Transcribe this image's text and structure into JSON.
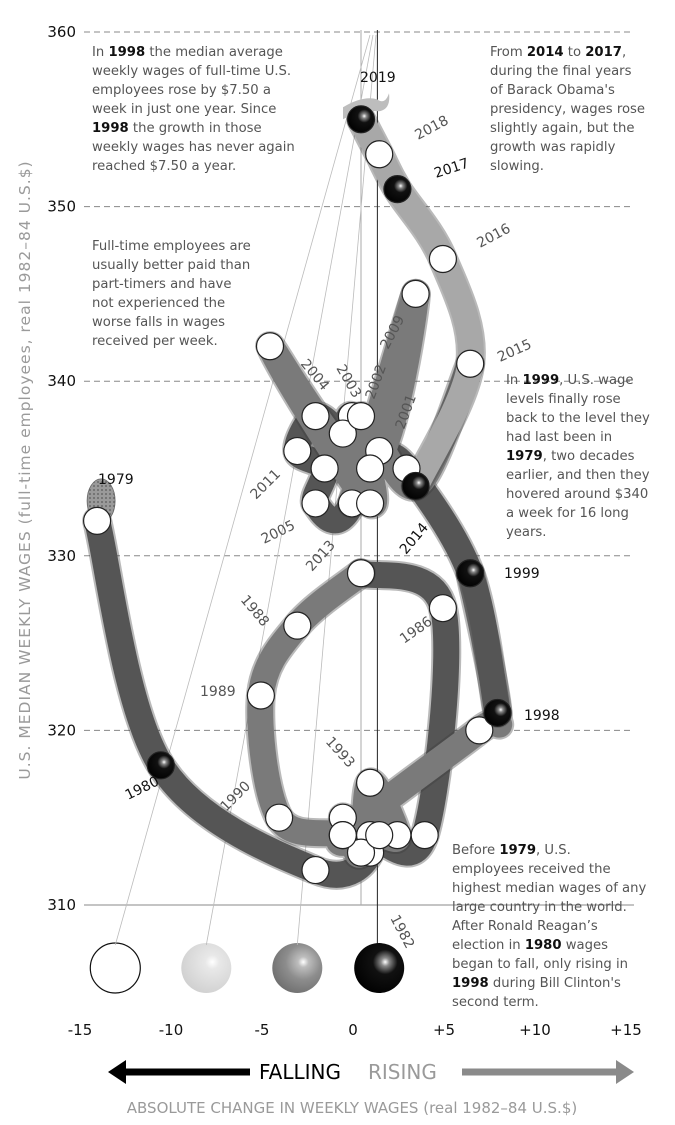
{
  "chart_data": {
    "type": "line",
    "subtype": "connected-scatter",
    "title": "",
    "ylabel": "U.S. MEDIAN WEEKLY WAGES (full-time employees, real 1982–84 U.S.$)",
    "xlabel": "ABSOLUTE CHANGE IN WEEKLY WAGES (real 1982–84 U.S.$)",
    "xlim": [
      -15,
      15
    ],
    "ylim": [
      310,
      360
    ],
    "x_ticks": [
      "-15",
      "-10",
      "-5",
      "0",
      "+5",
      "+10",
      "+15"
    ],
    "y_ticks": [
      "360",
      "350",
      "340",
      "330",
      "320",
      "310"
    ],
    "grid": true,
    "arrow_left_label": "FALLING",
    "arrow_right_label": "RISING",
    "legend_balls": [
      "white",
      "light-grey",
      "dark-grey",
      "black"
    ],
    "points": [
      {
        "year": "1979",
        "x": -14.5,
        "y": 332
      },
      {
        "year": "1980",
        "x": -11.0,
        "y": 318
      },
      {
        "year": "1981",
        "x": -2.5,
        "y": 312
      },
      {
        "year": "1982",
        "x": 0.5,
        "y": 313
      },
      {
        "year": "1983",
        "x": -1.0,
        "y": 315
      },
      {
        "year": "1984",
        "x": 0.5,
        "y": 314
      },
      {
        "year": "1985",
        "x": 3.5,
        "y": 314
      },
      {
        "year": "1986",
        "x": 4.5,
        "y": 327
      },
      {
        "year": "1987",
        "x": 0.0,
        "y": 329
      },
      {
        "year": "1988",
        "x": -3.5,
        "y": 326
      },
      {
        "year": "1989",
        "x": -5.5,
        "y": 322
      },
      {
        "year": "1990",
        "x": -4.5,
        "y": 315
      },
      {
        "year": "1991",
        "x": -1.0,
        "y": 314
      },
      {
        "year": "1992",
        "x": 0.0,
        "y": 313
      },
      {
        "year": "1993",
        "x": 0.5,
        "y": 317
      },
      {
        "year": "1994",
        "x": 2.0,
        "y": 314
      },
      {
        "year": "1995",
        "x": 1.0,
        "y": 314
      },
      {
        "year": "1996",
        "x": -1.0,
        "y": 314
      },
      {
        "year": "1997",
        "x": 6.5,
        "y": 320
      },
      {
        "year": "1998",
        "x": 7.5,
        "y": 321
      },
      {
        "year": "1999",
        "x": 6.0,
        "y": 329
      },
      {
        "year": "2000",
        "x": 2.5,
        "y": 335
      },
      {
        "year": "2001",
        "x": 1.0,
        "y": 336
      },
      {
        "year": "2002",
        "x": -0.5,
        "y": 338
      },
      {
        "year": "2003",
        "x": -1.0,
        "y": 337
      },
      {
        "year": "2004",
        "x": -2.5,
        "y": 338
      },
      {
        "year": "2005",
        "x": -3.5,
        "y": 336
      },
      {
        "year": "2006",
        "x": -2.0,
        "y": 335
      },
      {
        "year": "2007",
        "x": -2.5,
        "y": 333
      },
      {
        "year": "2008",
        "x": -0.5,
        "y": 333
      },
      {
        "year": "2009",
        "x": 3.0,
        "y": 345
      },
      {
        "year": "2010",
        "x": 0.5,
        "y": 335
      },
      {
        "year": "2011",
        "x": -5.0,
        "y": 342
      },
      {
        "year": "2012",
        "x": 0.5,
        "y": 333
      },
      {
        "year": "2013",
        "x": 0.0,
        "y": 338
      },
      {
        "year": "2014",
        "x": 3.0,
        "y": 334
      },
      {
        "year": "2015",
        "x": 6.0,
        "y": 341
      },
      {
        "year": "2016",
        "x": 4.5,
        "y": 347
      },
      {
        "year": "2017",
        "x": 2.0,
        "y": 351
      },
      {
        "year": "2018",
        "x": 1.0,
        "y": 353
      },
      {
        "year": "2019",
        "x": 0.0,
        "y": 355
      }
    ],
    "year_labels": [
      {
        "text": "1979",
        "color": "#111"
      },
      {
        "text": "1980",
        "color": "#111"
      },
      {
        "text": "1982",
        "color": "#555"
      },
      {
        "text": "1986",
        "color": "#555"
      },
      {
        "text": "1988",
        "color": "#555"
      },
      {
        "text": "1989",
        "color": "#555"
      },
      {
        "text": "1990",
        "color": "#555"
      },
      {
        "text": "1993",
        "color": "#555"
      },
      {
        "text": "1998",
        "color": "#111"
      },
      {
        "text": "1999",
        "color": "#111"
      },
      {
        "text": "2001",
        "color": "#555"
      },
      {
        "text": "2002",
        "color": "#555"
      },
      {
        "text": "2003",
        "color": "#555"
      },
      {
        "text": "2004",
        "color": "#555"
      },
      {
        "text": "2005",
        "color": "#555"
      },
      {
        "text": "2009",
        "color": "#555"
      },
      {
        "text": "2011",
        "color": "#555"
      },
      {
        "text": "2013",
        "color": "#555"
      },
      {
        "text": "2014",
        "color": "#111"
      },
      {
        "text": "2015",
        "color": "#555"
      },
      {
        "text": "2016",
        "color": "#555"
      },
      {
        "text": "2017",
        "color": "#111"
      },
      {
        "text": "2018",
        "color": "#555"
      },
      {
        "text": "2019",
        "color": "#111"
      }
    ]
  },
  "annotations": {
    "a1998": {
      "lines": [
        [
          "In ",
          "1998",
          " the median average"
        ],
        [
          "weekly wages of full-time U.S."
        ],
        [
          "employees rose by $7.50 a"
        ],
        [
          "week in just one year. Since"
        ],
        [
          "",
          "1998",
          " the growth in those"
        ],
        [
          "weekly wages has never again"
        ],
        [
          "reached $7.50 a year."
        ]
      ]
    },
    "a2014": {
      "lines": [
        [
          "From ",
          "2014",
          " to ",
          "2017",
          ","
        ],
        [
          "during the final years"
        ],
        [
          "of Barack Obama's"
        ],
        [
          "presidency, wages rose"
        ],
        [
          "slightly again, but the"
        ],
        [
          "growth was rapidly"
        ],
        [
          "slowing."
        ]
      ]
    },
    "afull": {
      "lines": [
        [
          "Full-time employees are"
        ],
        [
          "usually better paid than"
        ],
        [
          "part-timers and have"
        ],
        [
          "not experienced the"
        ],
        [
          "worse falls in wages"
        ],
        [
          "received per week."
        ]
      ]
    },
    "a1999": {
      "lines": [
        [
          "In ",
          "1999",
          ", U.S. wage"
        ],
        [
          "levels finally rose"
        ],
        [
          "back to the level they"
        ],
        [
          "had last been in"
        ],
        [
          "",
          "1979",
          ", two decades"
        ],
        [
          "earlier, and then they"
        ],
        [
          "hovered around $340"
        ],
        [
          "a week for 16 long"
        ],
        [
          "years."
        ]
      ]
    },
    "a1979": {
      "lines": [
        [
          "Before ",
          "1979",
          ", U.S."
        ],
        [
          "employees received the"
        ],
        [
          "highest median wages of any"
        ],
        [
          "large country in the world."
        ],
        [
          "After Ronald Reagan’s"
        ],
        [
          "election in ",
          "1980",
          " wages"
        ],
        [
          "began to fall, only rising in"
        ],
        [
          "",
          "1998",
          " during Bill Clinton's"
        ],
        [
          "second term."
        ]
      ]
    }
  },
  "colors": {
    "tube_dark": "#555555",
    "tube_mid": "#7a7a7a",
    "tube_light": "#a8a8a8",
    "ball_black": "#000000",
    "ball_white": "#ffffff",
    "grid": "#888888",
    "peanut": "#8c8c8c"
  }
}
